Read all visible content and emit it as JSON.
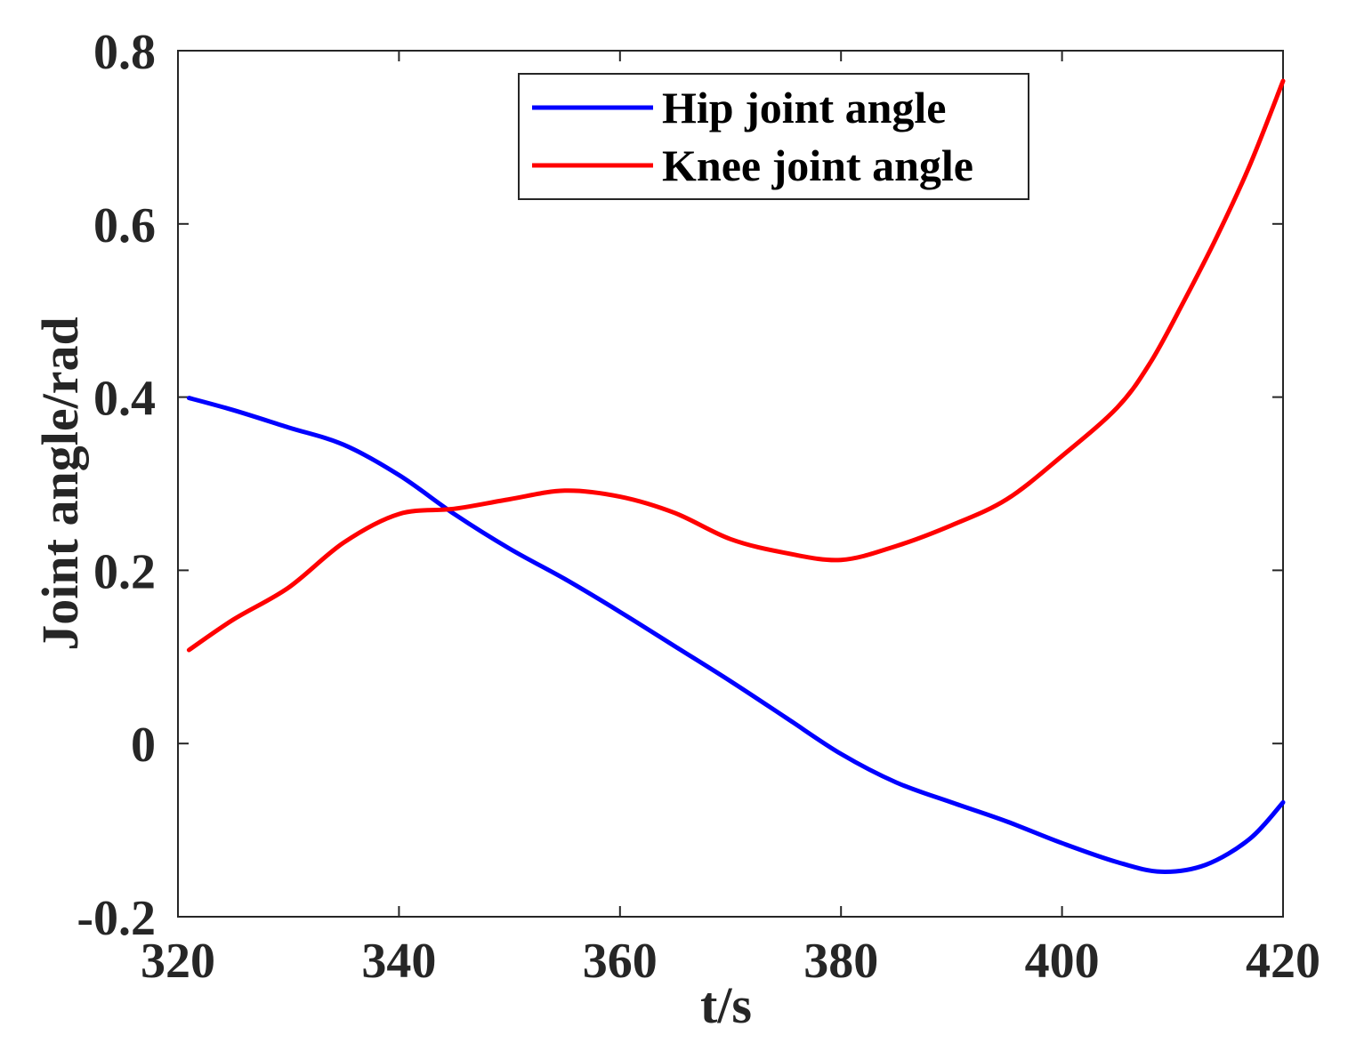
{
  "chart_data": {
    "type": "line",
    "title": "",
    "xlabel": "t/s",
    "ylabel": "Joint angle/rad",
    "xlim": [
      320,
      420
    ],
    "ylim": [
      -0.2,
      0.8
    ],
    "xticks": [
      320,
      340,
      360,
      380,
      400,
      420
    ],
    "yticks": [
      -0.2,
      0,
      0.2,
      0.4,
      0.6,
      0.8
    ],
    "xtick_labels": [
      "320",
      "340",
      "360",
      "380",
      "400",
      "420"
    ],
    "ytick_labels": [
      "-0.2",
      "0",
      "0.2",
      "0.4",
      "0.6",
      "0.8"
    ],
    "grid": false,
    "legend_position": "top-center",
    "series": [
      {
        "name": "Hip joint angle",
        "color": "#0000ff",
        "x": [
          321,
          325,
          330,
          335,
          340,
          345,
          350,
          355,
          360,
          365,
          370,
          375,
          380,
          385,
          390,
          395,
          400,
          405,
          409,
          413,
          417,
          420
        ],
        "y": [
          0.399,
          0.385,
          0.365,
          0.345,
          0.31,
          0.265,
          0.225,
          0.19,
          0.152,
          0.112,
          0.072,
          0.03,
          -0.012,
          -0.045,
          -0.068,
          -0.09,
          -0.115,
          -0.137,
          -0.148,
          -0.14,
          -0.11,
          -0.068
        ]
      },
      {
        "name": "Knee joint angle",
        "color": "#ff0000",
        "x": [
          321,
          325,
          330,
          335,
          340,
          345,
          350,
          355,
          360,
          365,
          370,
          375,
          380,
          385,
          390,
          395,
          400,
          405,
          408,
          411,
          414,
          417,
          420
        ],
        "y": [
          0.108,
          0.143,
          0.18,
          0.232,
          0.265,
          0.271,
          0.282,
          0.292,
          0.285,
          0.266,
          0.236,
          0.22,
          0.212,
          0.228,
          0.252,
          0.282,
          0.332,
          0.388,
          0.44,
          0.51,
          0.585,
          0.668,
          0.765
        ]
      }
    ]
  }
}
